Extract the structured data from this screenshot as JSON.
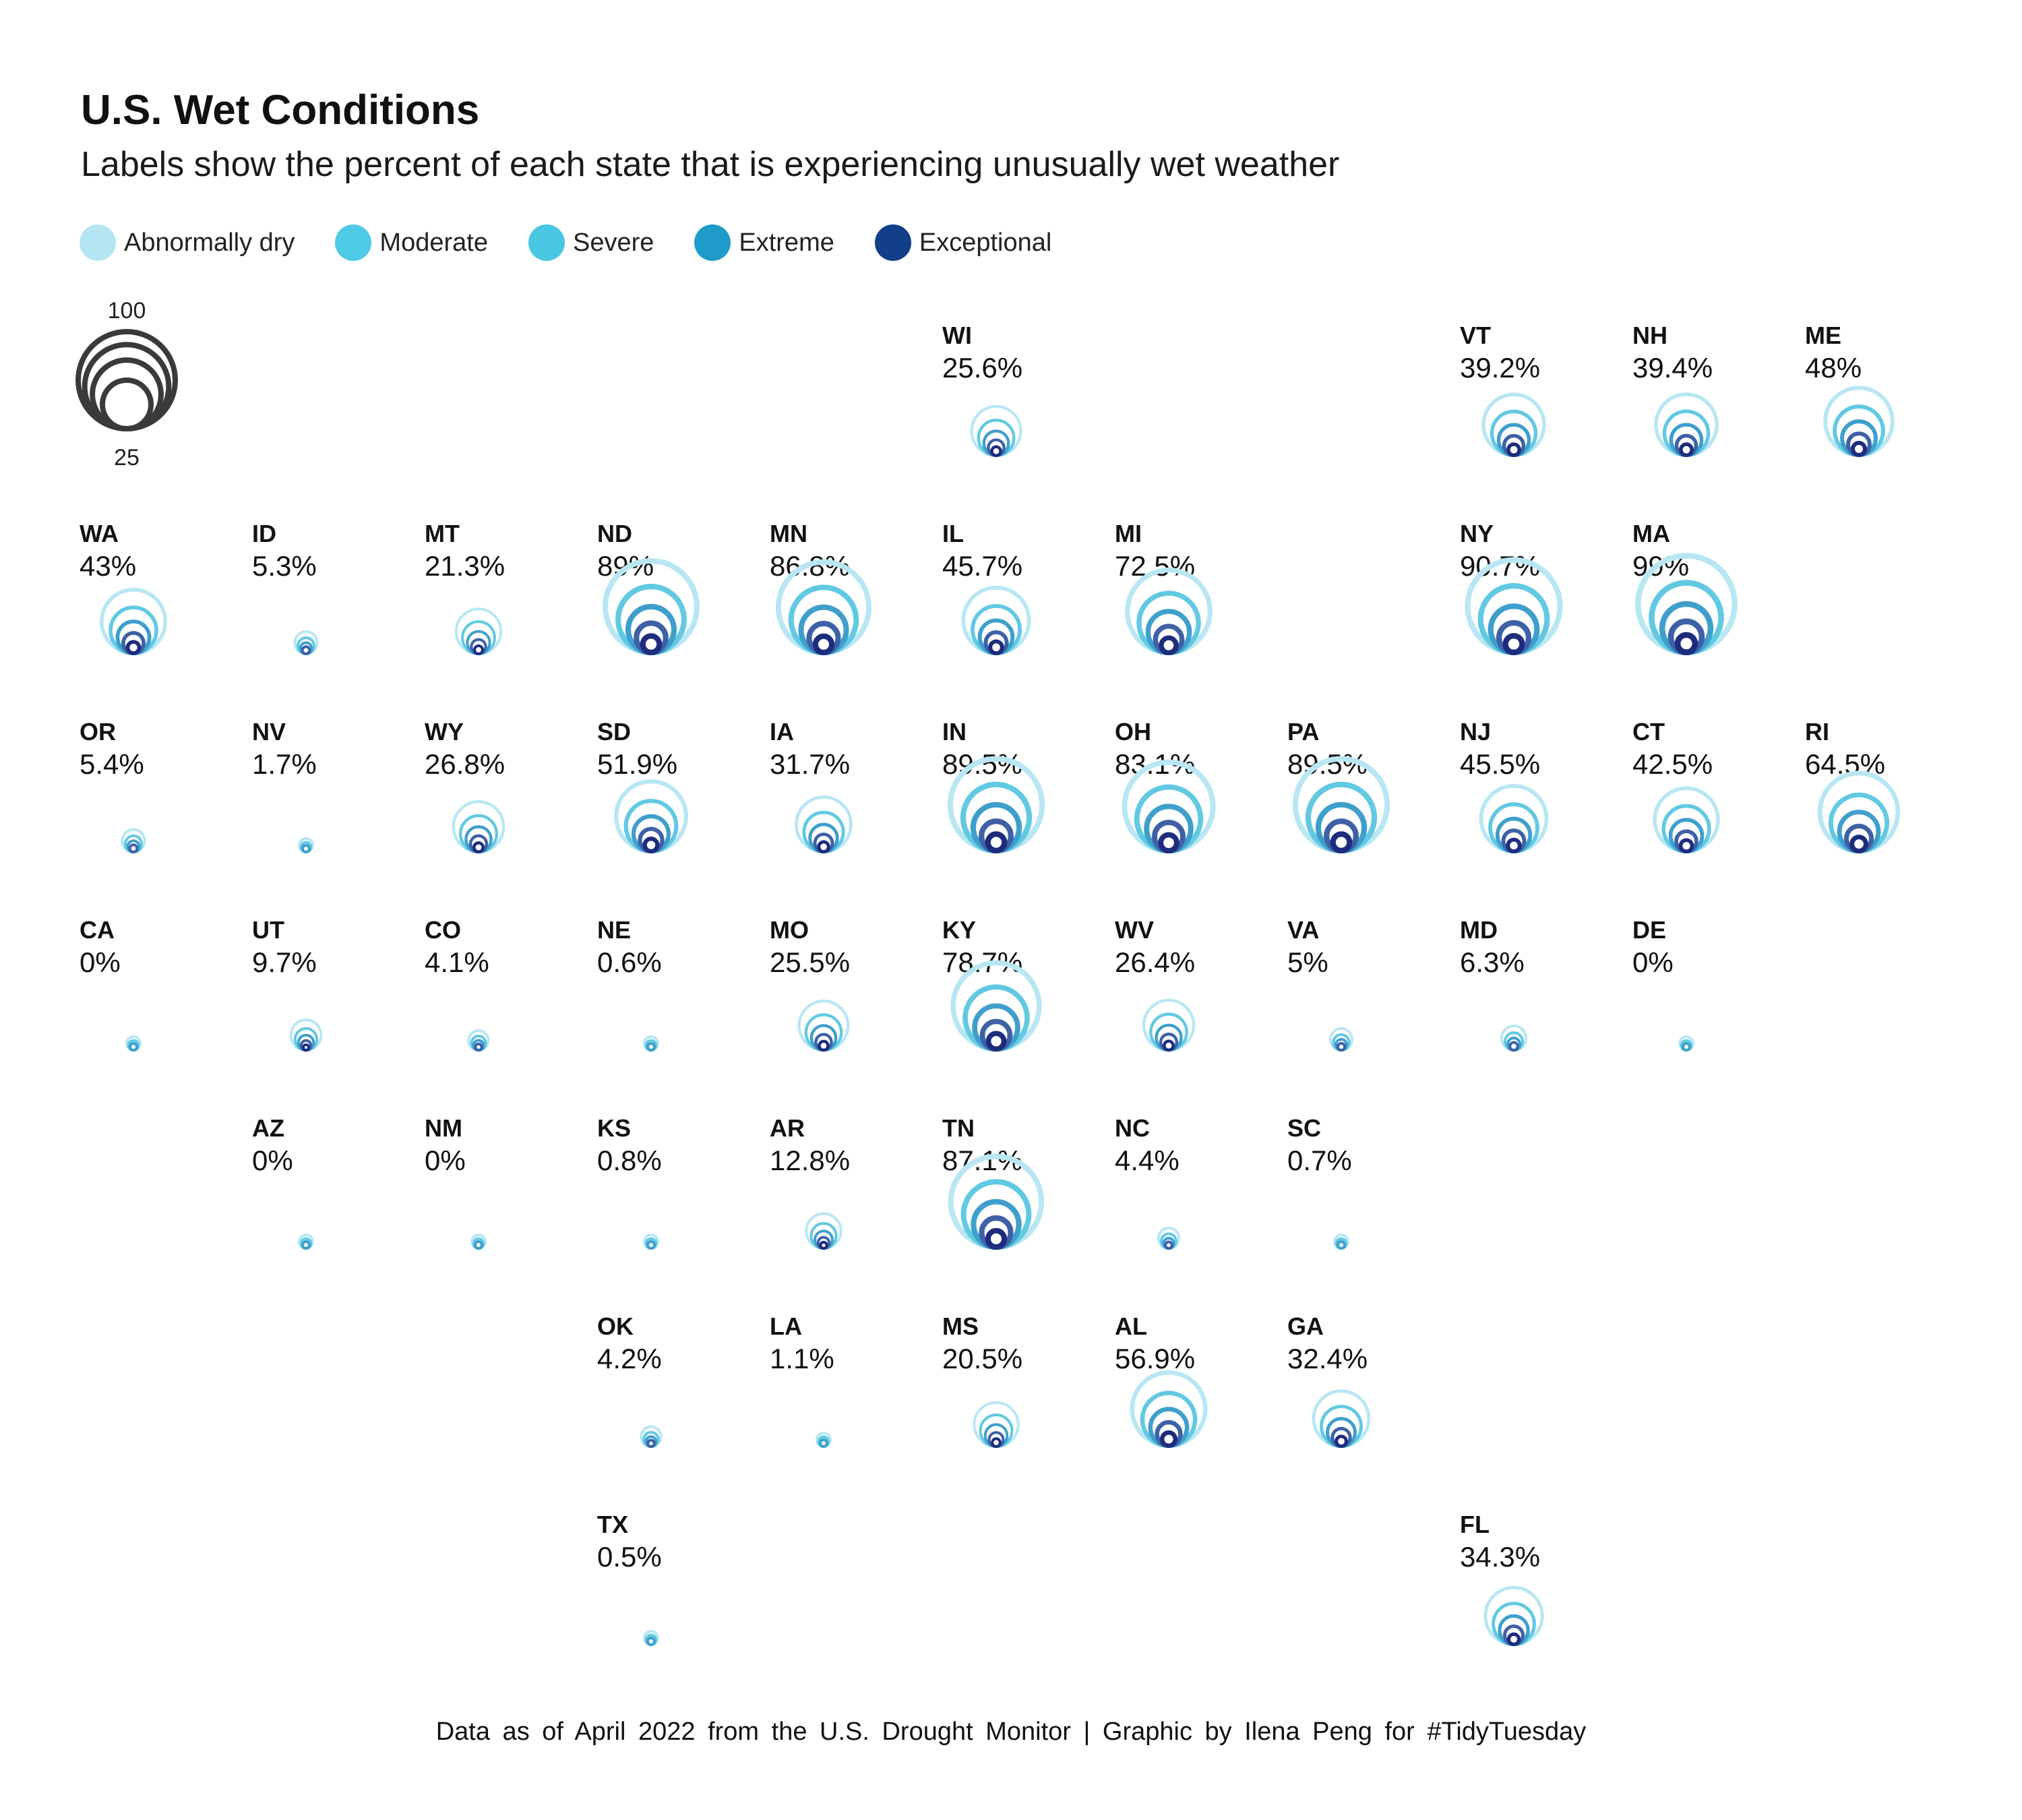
{
  "chart_data": {
    "type": "bubble-grid",
    "title": "U.S. Wet Conditions",
    "subtitle": "Labels show the percent of each state that is experiencing unusually wet weather",
    "caption": "Data as of April 2022 from the U.S. Drought Monitor | Graphic by Ilena Peng for #TidyTuesday",
    "legend": [
      {
        "name": "Abnormally dry",
        "color": "#b3e6f2"
      },
      {
        "name": "Moderate",
        "color": "#4ecae6"
      },
      {
        "name": "Severe",
        "color": "#49c6e2"
      },
      {
        "name": "Extreme",
        "color": "#1e9bc9"
      },
      {
        "name": "Exceptional",
        "color": "#123f87"
      }
    ],
    "size_legend": {
      "max_label": "100",
      "min_label": "25",
      "values": [
        100,
        75,
        50,
        25
      ]
    },
    "states": [
      {
        "abbr": "WI",
        "label": "25.6%",
        "pct": 25.6,
        "col": 5,
        "row": 0
      },
      {
        "abbr": "VT",
        "label": "39.2%",
        "pct": 39.2,
        "col": 8,
        "row": 0
      },
      {
        "abbr": "NH",
        "label": "39.4%",
        "pct": 39.4,
        "col": 9,
        "row": 0
      },
      {
        "abbr": "ME",
        "label": "48%",
        "pct": 48,
        "col": 10,
        "row": 0
      },
      {
        "abbr": "WA",
        "label": "43%",
        "pct": 43,
        "col": 0,
        "row": 1
      },
      {
        "abbr": "ID",
        "label": "5.3%",
        "pct": 5.3,
        "col": 1,
        "row": 1
      },
      {
        "abbr": "MT",
        "label": "21.3%",
        "pct": 21.3,
        "col": 2,
        "row": 1
      },
      {
        "abbr": "ND",
        "label": "89%",
        "pct": 89,
        "col": 3,
        "row": 1
      },
      {
        "abbr": "MN",
        "label": "86.8%",
        "pct": 86.8,
        "col": 4,
        "row": 1
      },
      {
        "abbr": "IL",
        "label": "45.7%",
        "pct": 45.7,
        "col": 5,
        "row": 1
      },
      {
        "abbr": "MI",
        "label": "72.5%",
        "pct": 72.5,
        "col": 6,
        "row": 1
      },
      {
        "abbr": "NY",
        "label": "90.7%",
        "pct": 90.7,
        "col": 8,
        "row": 1
      },
      {
        "abbr": "MA",
        "label": "99%",
        "pct": 99,
        "col": 9,
        "row": 1
      },
      {
        "abbr": "OR",
        "label": "5.4%",
        "pct": 5.4,
        "col": 0,
        "row": 2
      },
      {
        "abbr": "NV",
        "label": "1.7%",
        "pct": 1.7,
        "col": 1,
        "row": 2
      },
      {
        "abbr": "WY",
        "label": "26.8%",
        "pct": 26.8,
        "col": 2,
        "row": 2
      },
      {
        "abbr": "SD",
        "label": "51.9%",
        "pct": 51.9,
        "col": 3,
        "row": 2
      },
      {
        "abbr": "IA",
        "label": "31.7%",
        "pct": 31.7,
        "col": 4,
        "row": 2
      },
      {
        "abbr": "IN",
        "label": "89.5%",
        "pct": 89.5,
        "col": 5,
        "row": 2
      },
      {
        "abbr": "OH",
        "label": "83.1%",
        "pct": 83.1,
        "col": 6,
        "row": 2
      },
      {
        "abbr": "PA",
        "label": "89.5%",
        "pct": 89.5,
        "col": 7,
        "row": 2
      },
      {
        "abbr": "NJ",
        "label": "45.5%",
        "pct": 45.5,
        "col": 8,
        "row": 2
      },
      {
        "abbr": "CT",
        "label": "42.5%",
        "pct": 42.5,
        "col": 9,
        "row": 2
      },
      {
        "abbr": "RI",
        "label": "64.5%",
        "pct": 64.5,
        "col": 10,
        "row": 2
      },
      {
        "abbr": "CA",
        "label": "0%",
        "pct": 0,
        "col": 0,
        "row": 3
      },
      {
        "abbr": "UT",
        "label": "9.7%",
        "pct": 9.7,
        "col": 1,
        "row": 3
      },
      {
        "abbr": "CO",
        "label": "4.1%",
        "pct": 4.1,
        "col": 2,
        "row": 3
      },
      {
        "abbr": "NE",
        "label": "0.6%",
        "pct": 0.6,
        "col": 3,
        "row": 3
      },
      {
        "abbr": "MO",
        "label": "25.5%",
        "pct": 25.5,
        "col": 4,
        "row": 3
      },
      {
        "abbr": "KY",
        "label": "78.7%",
        "pct": 78.7,
        "col": 5,
        "row": 3
      },
      {
        "abbr": "WV",
        "label": "26.4%",
        "pct": 26.4,
        "col": 6,
        "row": 3
      },
      {
        "abbr": "VA",
        "label": "5%",
        "pct": 5,
        "col": 7,
        "row": 3
      },
      {
        "abbr": "MD",
        "label": "6.3%",
        "pct": 6.3,
        "col": 8,
        "row": 3
      },
      {
        "abbr": "DE",
        "label": "0%",
        "pct": 0,
        "col": 9,
        "row": 3
      },
      {
        "abbr": "AZ",
        "label": "0%",
        "pct": 0,
        "col": 1,
        "row": 4
      },
      {
        "abbr": "NM",
        "label": "0%",
        "pct": 0,
        "col": 2,
        "row": 4
      },
      {
        "abbr": "KS",
        "label": "0.8%",
        "pct": 0.8,
        "col": 3,
        "row": 4
      },
      {
        "abbr": "AR",
        "label": "12.8%",
        "pct": 12.8,
        "col": 4,
        "row": 4
      },
      {
        "abbr": "TN",
        "label": "87.1%",
        "pct": 87.1,
        "col": 5,
        "row": 4
      },
      {
        "abbr": "NC",
        "label": "4.4%",
        "pct": 4.4,
        "col": 6,
        "row": 4
      },
      {
        "abbr": "SC",
        "label": "0.7%",
        "pct": 0.7,
        "col": 7,
        "row": 4
      },
      {
        "abbr": "OK",
        "label": "4.2%",
        "pct": 4.2,
        "col": 3,
        "row": 5
      },
      {
        "abbr": "LA",
        "label": "1.1%",
        "pct": 1.1,
        "col": 4,
        "row": 5
      },
      {
        "abbr": "MS",
        "label": "20.5%",
        "pct": 20.5,
        "col": 5,
        "row": 5
      },
      {
        "abbr": "AL",
        "label": "56.9%",
        "pct": 56.9,
        "col": 6,
        "row": 5
      },
      {
        "abbr": "GA",
        "label": "32.4%",
        "pct": 32.4,
        "col": 7,
        "row": 5
      },
      {
        "abbr": "TX",
        "label": "0.5%",
        "pct": 0.5,
        "col": 3,
        "row": 6
      },
      {
        "abbr": "FL",
        "label": "34.3%",
        "pct": 34.3,
        "col": 8,
        "row": 6
      }
    ]
  }
}
